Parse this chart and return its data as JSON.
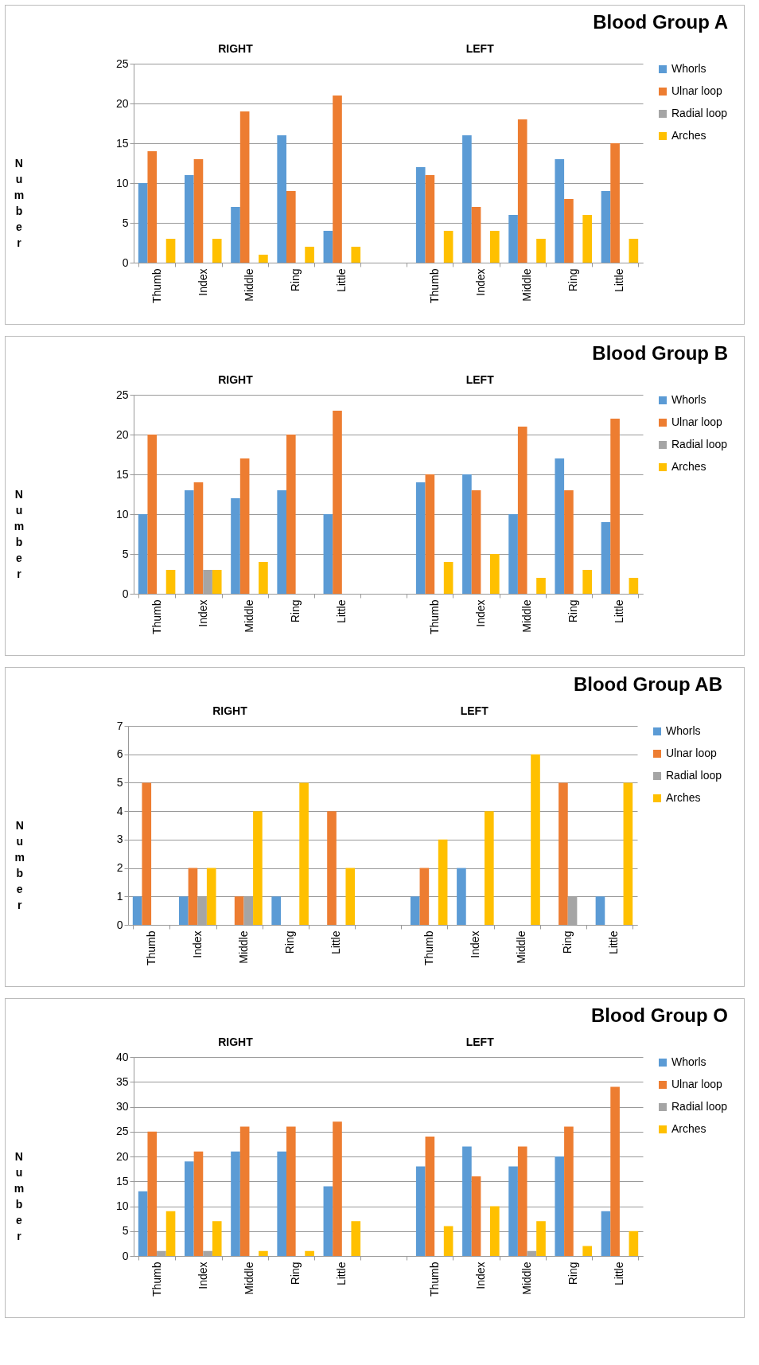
{
  "chart_data": [
    {
      "type": "bar",
      "title": "Blood Group A",
      "ylabel": "Number",
      "annotations": [
        "RIGHT",
        "LEFT"
      ],
      "categories": [
        "Thumb",
        "Index",
        "Middle",
        "Ring",
        "Little",
        null,
        "Thumb",
        "Index",
        "Middle",
        "Ring",
        "Little"
      ],
      "ylim": [
        0,
        25
      ],
      "yticks": [
        0,
        5,
        10,
        15,
        20,
        25
      ],
      "grid": "y",
      "legend": "right",
      "series": [
        {
          "name": "Whorls",
          "color": "#5b9bd5",
          "values": [
            10,
            11,
            7,
            16,
            4,
            null,
            12,
            16,
            6,
            13,
            9
          ]
        },
        {
          "name": "Ulnar loop",
          "color": "#ed7d31",
          "values": [
            14,
            13,
            19,
            9,
            21,
            null,
            11,
            7,
            18,
            8,
            15
          ]
        },
        {
          "name": "Radial loop",
          "color": "#a5a5a5",
          "values": [
            0,
            0,
            0,
            0,
            0,
            null,
            0,
            0,
            0,
            0,
            0
          ]
        },
        {
          "name": "Arches",
          "color": "#ffc000",
          "values": [
            3,
            3,
            1,
            2,
            2,
            null,
            4,
            4,
            3,
            6,
            3
          ]
        }
      ]
    },
    {
      "type": "bar",
      "title": "Blood Group B",
      "ylabel": "Number",
      "annotations": [
        "RIGHT",
        "LEFT"
      ],
      "categories": [
        "Thumb",
        "Index",
        "Middle",
        "Ring",
        "Little",
        null,
        "Thumb",
        "Index",
        "Middle",
        "Ring",
        "Little"
      ],
      "ylim": [
        0,
        25
      ],
      "yticks": [
        0,
        5,
        10,
        15,
        20,
        25
      ],
      "grid": "y",
      "legend": "right",
      "series": [
        {
          "name": "Whorls",
          "color": "#5b9bd5",
          "values": [
            10,
            13,
            12,
            13,
            10,
            null,
            14,
            15,
            10,
            17,
            9
          ]
        },
        {
          "name": "Ulnar loop",
          "color": "#ed7d31",
          "values": [
            20,
            14,
            17,
            20,
            23,
            null,
            15,
            13,
            21,
            13,
            22
          ]
        },
        {
          "name": "Radial loop",
          "color": "#a5a5a5",
          "values": [
            0,
            3,
            0,
            0,
            0,
            null,
            0,
            0,
            0,
            0,
            0
          ]
        },
        {
          "name": "Arches",
          "color": "#ffc000",
          "values": [
            3,
            3,
            4,
            0,
            0,
            null,
            4,
            5,
            2,
            3,
            2
          ]
        }
      ]
    },
    {
      "type": "bar",
      "title": "Blood Group AB",
      "ylabel": "Number",
      "annotations": [
        "RIGHT",
        "LEFT"
      ],
      "categories": [
        "Thumb",
        "Index",
        "Middle",
        "Ring",
        "Little",
        null,
        "Thumb",
        "Index",
        "Middle",
        "Ring",
        "Little"
      ],
      "ylim": [
        0,
        7
      ],
      "yticks": [
        0,
        1,
        2,
        3,
        4,
        5,
        6,
        7
      ],
      "grid": "y",
      "legend": "right",
      "series": [
        {
          "name": "Whorls",
          "color": "#5b9bd5",
          "values": [
            1,
            1,
            0,
            1,
            0,
            null,
            1,
            2,
            0,
            0,
            1
          ]
        },
        {
          "name": "Ulnar loop",
          "color": "#ed7d31",
          "values": [
            5,
            2,
            1,
            0,
            4,
            null,
            2,
            0,
            0,
            5,
            0
          ]
        },
        {
          "name": "Radial loop",
          "color": "#a5a5a5",
          "values": [
            0,
            1,
            1,
            0,
            0,
            null,
            0,
            0,
            0,
            1,
            0
          ]
        },
        {
          "name": "Arches",
          "color": "#ffc000",
          "values": [
            0,
            2,
            4,
            5,
            2,
            null,
            3,
            4,
            6,
            0,
            5
          ]
        }
      ]
    },
    {
      "type": "bar",
      "title": "Blood Group O",
      "ylabel": "Number",
      "annotations": [
        "RIGHT",
        "LEFT"
      ],
      "categories": [
        "Thumb",
        "Index",
        "Middle",
        "Ring",
        "Little",
        null,
        "Thumb",
        "Index",
        "Middle",
        "Ring",
        "Little"
      ],
      "ylim": [
        0,
        40
      ],
      "yticks": [
        0,
        5,
        10,
        15,
        20,
        25,
        30,
        35,
        40
      ],
      "grid": "y",
      "legend": "right",
      "series": [
        {
          "name": "Whorls",
          "color": "#5b9bd5",
          "values": [
            13,
            19,
            21,
            21,
            14,
            null,
            18,
            22,
            18,
            20,
            9
          ]
        },
        {
          "name": "Ulnar loop",
          "color": "#ed7d31",
          "values": [
            25,
            21,
            26,
            26,
            27,
            null,
            24,
            16,
            22,
            26,
            34
          ]
        },
        {
          "name": "Radial loop",
          "color": "#a5a5a5",
          "values": [
            1,
            1,
            0,
            0,
            0,
            null,
            0,
            0,
            1,
            0,
            0
          ]
        },
        {
          "name": "Arches",
          "color": "#ffc000",
          "values": [
            9,
            7,
            1,
            1,
            7,
            null,
            6,
            10,
            7,
            2,
            5
          ]
        }
      ]
    }
  ]
}
